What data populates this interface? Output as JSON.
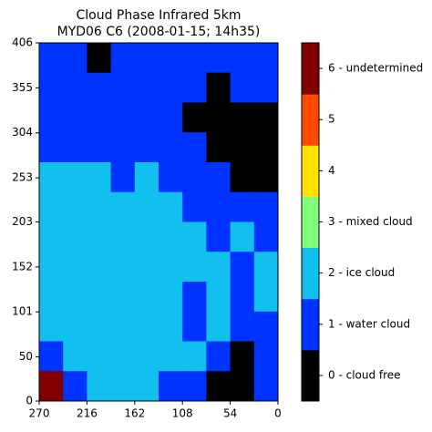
{
  "chart_data": {
    "type": "heatmap",
    "title": "Cloud Phase Infrared 5km",
    "subtitle": "MYD06 C6 (2008-01-15; 14h35)",
    "xlim": [
      270,
      0
    ],
    "xticks": [
      270,
      216,
      162,
      108,
      54,
      0
    ],
    "ylim": [
      0,
      406
    ],
    "yticks": [
      0,
      50,
      101,
      152,
      203,
      253,
      304,
      355,
      406
    ],
    "z": [
      [
        1,
        1,
        0,
        1,
        1,
        1,
        1,
        1,
        1,
        1
      ],
      [
        1,
        1,
        1,
        1,
        1,
        1,
        1,
        0,
        1,
        1
      ],
      [
        1,
        1,
        1,
        1,
        1,
        1,
        0,
        0,
        0,
        0
      ],
      [
        1,
        1,
        1,
        1,
        1,
        1,
        1,
        0,
        0,
        0
      ],
      [
        2,
        2,
        2,
        1,
        2,
        1,
        1,
        1,
        0,
        0
      ],
      [
        2,
        2,
        2,
        2,
        2,
        2,
        1,
        1,
        1,
        1
      ],
      [
        2,
        2,
        2,
        2,
        2,
        2,
        2,
        1,
        2,
        1
      ],
      [
        2,
        2,
        2,
        2,
        2,
        2,
        2,
        2,
        1,
        2
      ],
      [
        2,
        2,
        2,
        2,
        2,
        2,
        1,
        2,
        1,
        2
      ],
      [
        2,
        2,
        2,
        2,
        2,
        2,
        1,
        2,
        1,
        1
      ],
      [
        1,
        2,
        2,
        2,
        2,
        2,
        2,
        1,
        0,
        1
      ],
      [
        6,
        1,
        2,
        2,
        2,
        1,
        1,
        0,
        0,
        1
      ]
    ],
    "colorbar": {
      "labels": [
        "0 - cloud free",
        "1 - water cloud",
        "2 - ice cloud",
        "3 - mixed cloud",
        "4",
        "5",
        "6 - undetermined"
      ],
      "colors": [
        "#000000",
        "#0033ff",
        "#12c0f0",
        "#80ff7a",
        "#ffe000",
        "#ff4a00",
        "#800000"
      ]
    }
  }
}
